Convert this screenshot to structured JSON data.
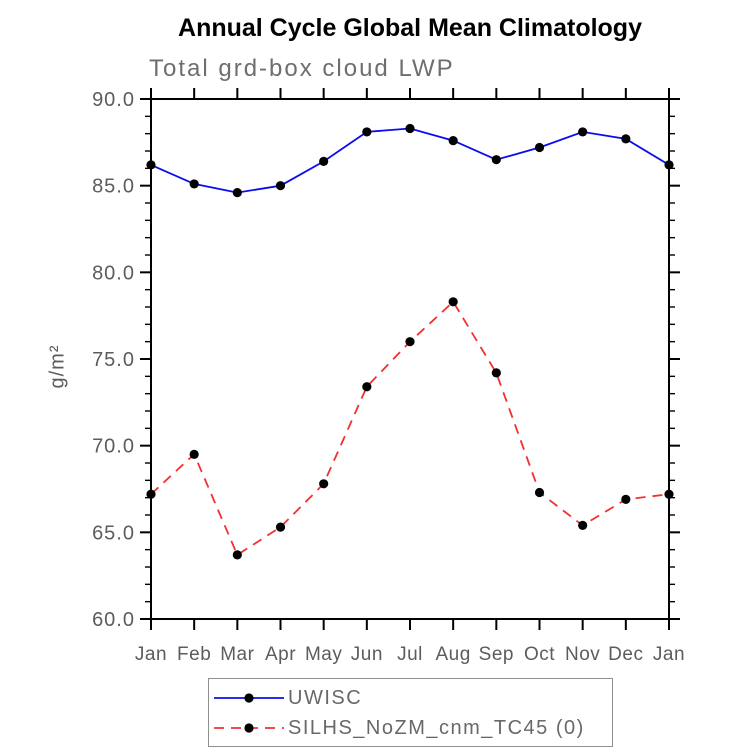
{
  "title": "Annual Cycle Global Mean Climatology",
  "chart_data": {
    "type": "line",
    "title": "Annual Cycle Global Mean Climatology",
    "subtitle": "Total grd-box cloud LWP",
    "xlabel": "",
    "ylabel": "g/m²",
    "ylim": [
      60.0,
      90.0
    ],
    "ytick_major_step": 5.0,
    "ytick_minor_step": 1.0,
    "ytick_labels": [
      "60.0",
      "65.0",
      "70.0",
      "75.0",
      "80.0",
      "85.0",
      "90.0"
    ],
    "grid": "off",
    "legend_position": "bottom-center-boxed",
    "marker": "filled-black-circle",
    "categories": [
      "Jan",
      "Feb",
      "Mar",
      "Apr",
      "May",
      "Jun",
      "Jul",
      "Aug",
      "Sep",
      "Oct",
      "Nov",
      "Dec",
      "Jan"
    ],
    "series": [
      {
        "name": "UWISC",
        "line_style": "solid",
        "color": "#0b0bef",
        "marker_color": "#000000",
        "values": [
          86.2,
          85.1,
          84.6,
          85.0,
          86.4,
          88.1,
          88.3,
          87.6,
          86.5,
          87.2,
          88.1,
          87.7,
          86.2
        ]
      },
      {
        "name": "SILHS_NoZM_cnm_TC45 (0)",
        "line_style": "dashed",
        "color": "#f23030",
        "marker_color": "#000000",
        "values": [
          67.2,
          69.5,
          63.7,
          65.3,
          67.8,
          73.4,
          76.0,
          78.3,
          74.2,
          67.3,
          65.4,
          66.9,
          67.2
        ]
      }
    ],
    "axis_color": "#000000",
    "tick_label_color": "#5c5c5c",
    "title_color": "#000000",
    "subtitle_color": "#6e6e6e"
  }
}
